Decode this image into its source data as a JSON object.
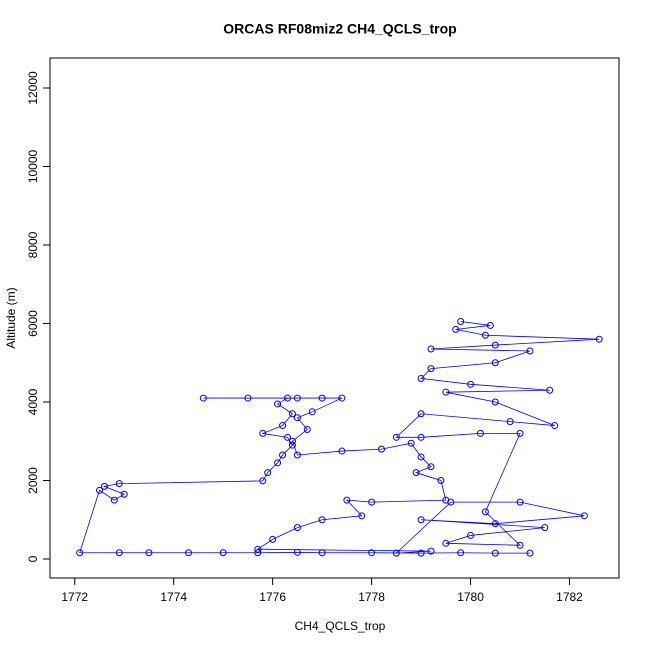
{
  "chart_data": {
    "type": "scatter",
    "title": "ORCAS RF08miz2 CH4_QCLS_trop",
    "x_label": "CH4_QCLS_trop",
    "y_label": "Altitude (m)",
    "color": "#0000ff",
    "connect": true,
    "xlim": [
      1771.5,
      1783.0
    ],
    "ylim": [
      -484,
      12764
    ],
    "xticks": [
      1772,
      1774,
      1776,
      1778,
      1780,
      1782
    ],
    "yticks": [
      0,
      2000,
      4000,
      6000,
      8000,
      10000,
      12000
    ],
    "x": [
      1781.2,
      1780.5,
      1779.8,
      1779,
      1778,
      1777,
      1776.5,
      1775.7,
      1775,
      1774.3,
      1773.5,
      1772.9,
      1772.1,
      1772.5,
      1772.8,
      1773,
      1772.6,
      1772.9,
      1775.8,
      1775.9,
      1776.1,
      1776.2,
      1776.4,
      1776.3,
      1775.8,
      1776.2,
      1776.4,
      1776.1,
      1776.3,
      1774.6,
      1775.5,
      1776.5,
      1777,
      1777.4,
      1776.8,
      1776.5,
      1776.7,
      1776.4,
      1776.5,
      1777.4,
      1778.2,
      1778.8,
      1779,
      1779.2,
      1778.9,
      1779.4,
      1779.5,
      1778,
      1777.5,
      1777.8,
      1777,
      1776.5,
      1776,
      1775.7,
      1779.2,
      1778.5,
      1779.6,
      1781,
      1782.3,
      1780.5,
      1779,
      1781.5,
      1780,
      1779.5,
      1781,
      1780.3,
      1781,
      1780.2,
      1779,
      1778.5,
      1779,
      1780.8,
      1781.7,
      1780.5,
      1779.5,
      1781.6,
      1780,
      1779,
      1779.2,
      1780.5,
      1781.2,
      1779.2,
      1780.5,
      1782.6,
      1780.3,
      1779.7,
      1780.4,
      1779.8
    ],
    "y": [
      150,
      150,
      160,
      150,
      160,
      160,
      170,
      160,
      160,
      160,
      160,
      160,
      160,
      1750,
      1500,
      1650,
      1850,
      1920,
      1990,
      2200,
      2450,
      2650,
      2900,
      3100,
      3200,
      3400,
      3700,
      3950,
      4100,
      4100,
      4100,
      4100,
      4100,
      4100,
      3750,
      3600,
      3300,
      3000,
      2650,
      2750,
      2800,
      2950,
      2600,
      2350,
      2200,
      2000,
      1500,
      1450,
      1500,
      1100,
      1000,
      800,
      500,
      250,
      200,
      150,
      1450,
      1450,
      1100,
      900,
      1000,
      800,
      600,
      400,
      350,
      1200,
      3200,
      3200,
      3100,
      3100,
      3700,
      3500,
      3400,
      4000,
      4250,
      4300,
      4450,
      4600,
      4850,
      5000,
      5300,
      5350,
      5450,
      5600,
      5700,
      5850,
      5950,
      6050
    ]
  }
}
